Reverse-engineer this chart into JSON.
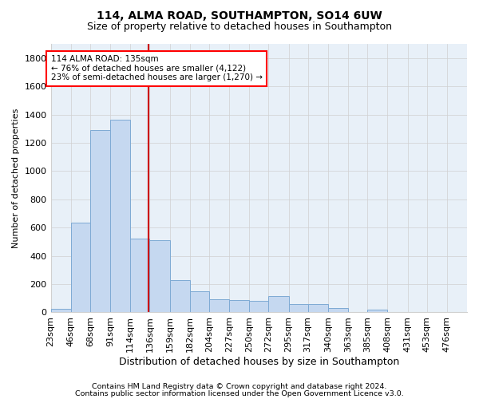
{
  "title1": "114, ALMA ROAD, SOUTHAMPTON, SO14 6UW",
  "title2": "Size of property relative to detached houses in Southampton",
  "xlabel": "Distribution of detached houses by size in Southampton",
  "ylabel": "Number of detached properties",
  "footnote1": "Contains HM Land Registry data © Crown copyright and database right 2024.",
  "footnote2": "Contains public sector information licensed under the Open Government Licence v3.0.",
  "annotation_line1": "114 ALMA ROAD: 135sqm",
  "annotation_line2": "← 76% of detached houses are smaller (4,122)",
  "annotation_line3": "23% of semi-detached houses are larger (1,270) →",
  "bar_color": "#c5d8f0",
  "bar_edge_color": "#7eaad4",
  "redline_color": "#cc0000",
  "redline_x": 135,
  "categories": [
    "23sqm",
    "46sqm",
    "68sqm",
    "91sqm",
    "114sqm",
    "136sqm",
    "159sqm",
    "182sqm",
    "204sqm",
    "227sqm",
    "250sqm",
    "272sqm",
    "295sqm",
    "317sqm",
    "340sqm",
    "363sqm",
    "385sqm",
    "408sqm",
    "431sqm",
    "453sqm",
    "476sqm"
  ],
  "bin_edges": [
    23,
    46,
    68,
    91,
    114,
    136,
    159,
    182,
    204,
    227,
    250,
    272,
    295,
    317,
    340,
    363,
    385,
    408,
    431,
    453,
    476
  ],
  "values": [
    25,
    635,
    1290,
    1365,
    520,
    510,
    230,
    150,
    95,
    90,
    80,
    115,
    60,
    60,
    30,
    5,
    20,
    5,
    5,
    0,
    0
  ],
  "ylim": [
    0,
    1900
  ],
  "yticks": [
    0,
    200,
    400,
    600,
    800,
    1000,
    1200,
    1400,
    1600,
    1800
  ],
  "background_color": "#ffffff",
  "grid_color": "#d0d0d0",
  "title1_fontsize": 10,
  "title2_fontsize": 9,
  "tick_fontsize": 8,
  "ylabel_fontsize": 8,
  "xlabel_fontsize": 9,
  "annotation_fontsize": 7.5,
  "footnote_fontsize": 6.8
}
